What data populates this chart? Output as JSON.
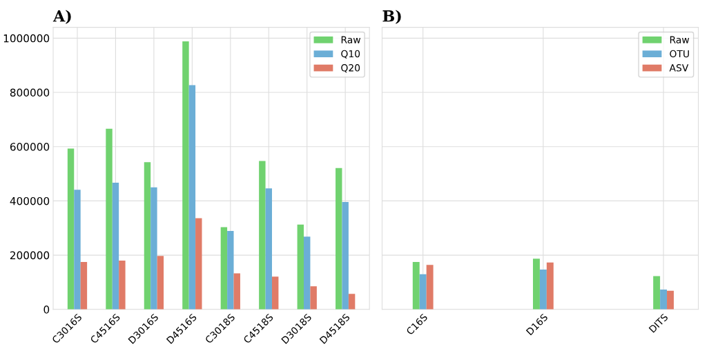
{
  "chart_data": [
    {
      "type": "bar",
      "title": "A)",
      "categories": [
        "C3016S",
        "C4516S",
        "D3016S",
        "D4516S",
        "C3018S",
        "C4518S",
        "D3018S",
        "D4518S"
      ],
      "series": [
        {
          "name": "Raw",
          "color": "#70d26f",
          "values": [
            593000,
            666000,
            543000,
            988000,
            303000,
            547000,
            313000,
            521000
          ]
        },
        {
          "name": "Q10",
          "color": "#6baed6",
          "values": [
            441000,
            467000,
            450000,
            827000,
            289000,
            446000,
            268000,
            396000
          ]
        },
        {
          "name": "Q20",
          "color": "#e07b67",
          "values": [
            175000,
            180000,
            197000,
            336000,
            133000,
            121000,
            85000,
            57000
          ]
        }
      ],
      "ylim": [
        0,
        1040000
      ],
      "yticks": [
        0,
        200000,
        400000,
        600000,
        800000,
        1000000
      ],
      "grid": true,
      "legend": "top right"
    },
    {
      "type": "bar",
      "title": "B)",
      "categories": [
        "C16S",
        "D16S",
        "DITS"
      ],
      "series": [
        {
          "name": "Raw",
          "color": "#70d26f",
          "values": [
            175000,
            187000,
            123000
          ]
        },
        {
          "name": "OTU",
          "color": "#6baed6",
          "values": [
            130000,
            147000,
            73000
          ]
        },
        {
          "name": "ASV",
          "color": "#e07b67",
          "values": [
            164000,
            173000,
            69000
          ]
        }
      ],
      "ylim": [
        0,
        1040000
      ],
      "yticks": [
        0,
        200000,
        400000,
        600000,
        800000,
        1000000
      ],
      "grid": true,
      "legend": "top right",
      "tick_labels": "x"
    }
  ]
}
